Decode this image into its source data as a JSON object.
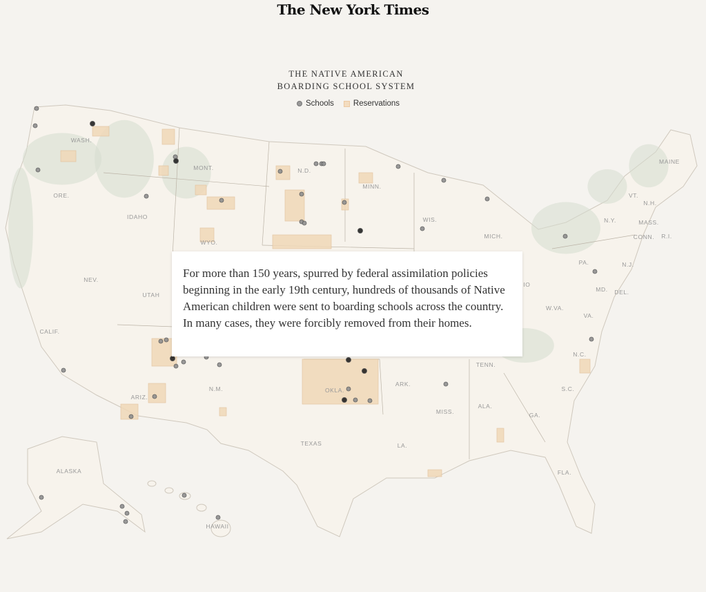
{
  "header": {
    "logo": "The New York Times"
  },
  "map": {
    "title_line1": "THE NATIVE AMERICAN",
    "title_line2": "BOARDING SCHOOL SYSTEM",
    "legend": [
      {
        "label": "Schools",
        "color": "#999999"
      },
      {
        "label": "Reservations",
        "color": "#f3dcc0"
      }
    ],
    "state_labels": [
      "WASH.",
      "MONT.",
      "N.D.",
      "MINN.",
      "ORE.",
      "IDAHO",
      "WYO.",
      "WIS.",
      "MICH.",
      "NEV.",
      "UTAH",
      "CALIF.",
      "ARIZ.",
      "N.M.",
      "OKLA.",
      "TEXAS",
      "ARK.",
      "TENN.",
      "MISS.",
      "ALA.",
      "GA.",
      "FLA.",
      "S.C.",
      "N.C.",
      "VA.",
      "W.VA.",
      "PA.",
      "N.Y.",
      "VT.",
      "N.H.",
      "MAINE",
      "MASS.",
      "CONN.",
      "R.I.",
      "N.J.",
      "MD.",
      "DEL.",
      "HIO",
      "LA.",
      "ALASKA",
      "HAWAII"
    ],
    "colors": {
      "land": "#f7f3ec",
      "mountains": "#d6dccf",
      "reservation": "#f0d8b8",
      "school": "#8f8f8f",
      "school_dark": "#222222"
    }
  },
  "intro": {
    "text": "For more than 150 years, spurred by federal assimilation policies beginning in the early 19th century, hundreds of thousands of Native American children were sent to boarding schools across the country. In many cases, they were forcibly removed from their homes."
  }
}
